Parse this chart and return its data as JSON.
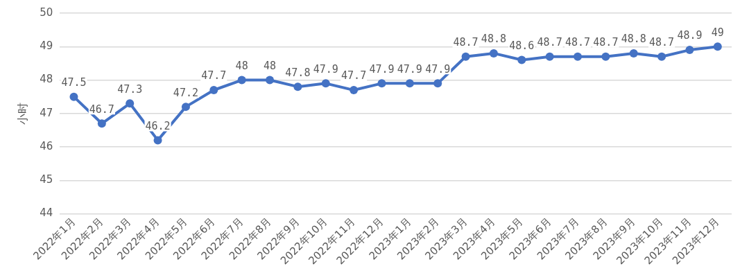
{
  "chart_data": {
    "type": "line",
    "ylabel": "小时",
    "categories": [
      "2022年1月",
      "2022年2月",
      "2022年3月",
      "2022年4月",
      "2022年5月",
      "2022年6月",
      "2022年7月",
      "2022年8月",
      "2022年9月",
      "2022年10月",
      "2022年11月",
      "2022年12月",
      "2023年1月",
      "2023年2月",
      "2023年3月",
      "2023年4月",
      "2023年5月",
      "2023年6月",
      "2023年7月",
      "2023年8月",
      "2023年9月",
      "2023年10月",
      "2023年11月",
      "2023年12月"
    ],
    "series": [
      {
        "color": "#4472c4",
        "values": [
          47.5,
          46.7,
          47.3,
          46.2,
          47.2,
          47.7,
          48,
          48,
          47.8,
          47.9,
          47.7,
          47.9,
          47.9,
          47.9,
          48.7,
          48.8,
          48.6,
          48.7,
          48.7,
          48.7,
          48.8,
          48.7,
          48.9,
          49
        ]
      }
    ],
    "ylim": [
      44,
      50
    ],
    "yticks": [
      44,
      45,
      46,
      47,
      48,
      49,
      50
    ],
    "grid": "y",
    "marker": "circle",
    "line_style": "solid",
    "data_labels": true,
    "legend": false
  }
}
